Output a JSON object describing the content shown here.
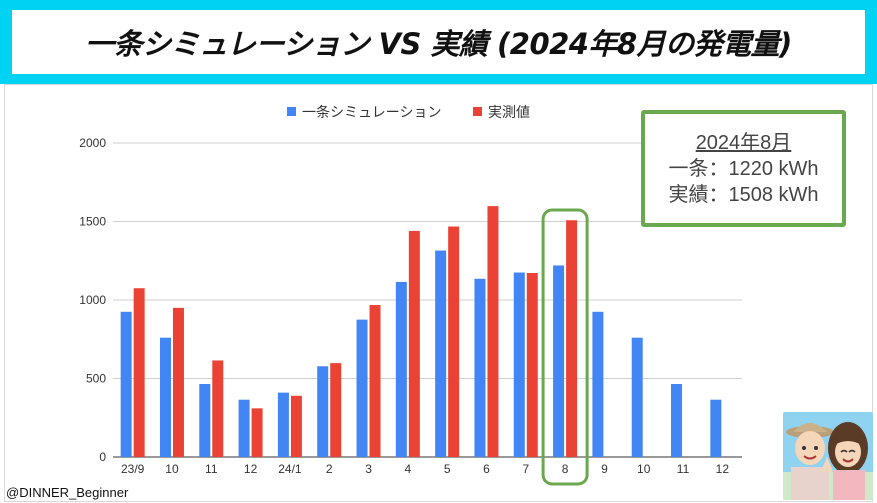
{
  "title": "一条シミュレーション VS 実績 (2024年8月の発電量)",
  "summary": {
    "heading": "2024年8月",
    "line1": "一条：1220 kWh",
    "line2": "実績：1508 kWh"
  },
  "credit": "@DINNER_Beginner",
  "colors": {
    "title_band": "#00d2f4",
    "sim": "#4285f4",
    "actual": "#ea4335",
    "highlight": "#6aa84f"
  },
  "chart_data": {
    "type": "bar",
    "categories": [
      "23/9",
      "10",
      "11",
      "12",
      "24/1",
      "2",
      "3",
      "4",
      "5",
      "6",
      "7",
      "8",
      "9",
      "10",
      "11",
      "12"
    ],
    "series": [
      {
        "name": "一条シミュレーション",
        "values": [
          925,
          760,
          465,
          365,
          410,
          578,
          875,
          1115,
          1315,
          1135,
          1175,
          1220,
          925,
          760,
          465,
          365
        ]
      },
      {
        "name": "実測値",
        "values": [
          1075,
          950,
          615,
          310,
          390,
          598,
          968,
          1440,
          1468,
          1598,
          1172,
          1508,
          null,
          null,
          null,
          null
        ]
      }
    ],
    "ylim": [
      0,
      2000
    ],
    "yticks": [
      0,
      500,
      1000,
      1500,
      2000
    ],
    "highlight_category": "8",
    "grid": true,
    "legend": "top-center"
  }
}
